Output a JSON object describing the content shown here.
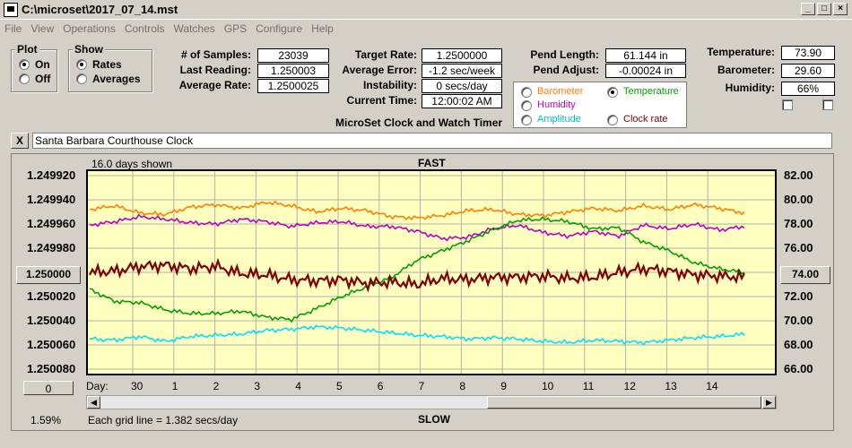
{
  "window": {
    "title": "C:\\microset\\2017_07_14.mst"
  },
  "menu": [
    "File",
    "View",
    "Operations",
    "Controls",
    "Watches",
    "GPS",
    "Configure",
    "Help"
  ],
  "plot_group": {
    "title": "Plot",
    "options": [
      "On",
      "Off"
    ],
    "selected": "On"
  },
  "show_group": {
    "title": "Show",
    "options": [
      "Rates",
      "Averages"
    ],
    "selected": "Rates"
  },
  "stats": {
    "samples_label": "# of Samples:",
    "samples": "23039",
    "last_label": "Last Reading:",
    "last": "1.250003",
    "avg_rate_label": "Average Rate:",
    "avg_rate": "1.2500025",
    "target_label": "Target Rate:",
    "target": "1.2500000",
    "avg_err_label": "Average Error:",
    "avg_err": "-1.2 sec/week",
    "instab_label": "Instability:",
    "instab": "0 secs/day",
    "time_label": "Current Time:",
    "time": "12:00:02 AM",
    "pend_len_label": "Pend Length:",
    "pend_len": "61.144 in",
    "pend_adj_label": "Pend Adjust:",
    "pend_adj": "-0.00024 in",
    "temp_label": "Temperature:",
    "temp": "73.90",
    "baro_label": "Barometer:",
    "baro": "29.60",
    "hum_label": "Humidity:",
    "hum": "66%"
  },
  "app_caption": "MicroSet Clock and Watch Timer",
  "overlay_group": {
    "options": [
      {
        "label": "Barometer",
        "color": "#ff8000",
        "selected": false
      },
      {
        "label": "Temperature",
        "color": "#00a000",
        "selected": true
      },
      {
        "label": "Humidity",
        "color": "#c000c0",
        "selected": false
      },
      {
        "label": "Amplitude",
        "color": "#00c0c0",
        "selected": false
      },
      {
        "label": "Clock rate",
        "color": "#800000",
        "selected": false
      }
    ]
  },
  "clock_name": "Santa Barbara Courthouse Clock",
  "close_label": "X",
  "chart": {
    "days_shown": "16.0 days shown",
    "top_label": "FAST",
    "bottom_label": "SLOW",
    "grid_note": "Each grid line = 1.382 secs/day",
    "day_label": "Day:",
    "percent": "1.59%",
    "left_button": "1.250000",
    "right_button": "74.00",
    "zero_button": "0"
  },
  "chart_data": {
    "type": "line",
    "left_axis_ticks": [
      "1.249920",
      "1.249940",
      "1.249960",
      "1.249980",
      "1.250000",
      "1.250020",
      "1.250040",
      "1.250060",
      "1.250080"
    ],
    "right_axis_ticks": [
      "82.00",
      "80.00",
      "78.00",
      "76.00",
      "74.00",
      "72.00",
      "70.00",
      "68.00",
      "66.00"
    ],
    "x_ticks": [
      "30",
      "1",
      "2",
      "3",
      "4",
      "5",
      "6",
      "7",
      "8",
      "9",
      "10",
      "11",
      "12",
      "13",
      "14"
    ],
    "series": [
      {
        "color": "#ff8000",
        "values": [
          79.2,
          79.5,
          78.9,
          78.8,
          79.4,
          79.6,
          79.3,
          79.8,
          79.5,
          79.0,
          79.3,
          79.1,
          78.6,
          78.5,
          78.7,
          79.1,
          79.2,
          78.8,
          78.7,
          79.0,
          79.3,
          79.1,
          79.5,
          79.2,
          79.6,
          79.3,
          78.9
        ]
      },
      {
        "color": "#c000c0",
        "values": [
          77.9,
          78.2,
          78.6,
          78.4,
          78.1,
          78.0,
          78.4,
          78.2,
          77.8,
          78.1,
          78.2,
          77.8,
          77.8,
          77.4,
          76.8,
          76.9,
          77.6,
          77.9,
          77.3,
          77.0,
          77.4,
          77.0,
          77.9,
          77.6,
          78.0,
          77.5,
          77.8
        ]
      },
      {
        "color": "#00a000",
        "values": [
          72.6,
          71.6,
          71.5,
          70.9,
          70.6,
          70.6,
          70.8,
          70.3,
          70.1,
          71.0,
          72.0,
          72.8,
          73.6,
          75.0,
          75.8,
          76.6,
          77.5,
          78.3,
          78.4,
          78.2,
          77.6,
          77.7,
          76.5,
          75.8,
          74.8,
          74.3,
          74.0
        ]
      },
      {
        "color": "#00e0ff",
        "values": [
          68.5,
          68.4,
          68.7,
          68.3,
          68.7,
          68.8,
          68.9,
          69.2,
          69.3,
          69.5,
          69.4,
          69.2,
          69.0,
          68.8,
          68.7,
          68.5,
          68.6,
          68.5,
          68.3,
          68.2,
          68.4,
          68.3,
          68.2,
          68.4,
          68.6,
          68.7,
          68.9
        ]
      },
      {
        "color": "#800000",
        "values": [
          74.0,
          74.1,
          74.5,
          74.6,
          74.3,
          74.5,
          73.9,
          73.8,
          73.4,
          73.3,
          73.4,
          73.1,
          73.2,
          73.0,
          73.5,
          73.4,
          73.6,
          73.6,
          73.7,
          73.5,
          73.6,
          74.0,
          74.3,
          74.1,
          73.8,
          73.7,
          73.6
        ]
      }
    ],
    "right_range": [
      66,
      82
    ]
  }
}
